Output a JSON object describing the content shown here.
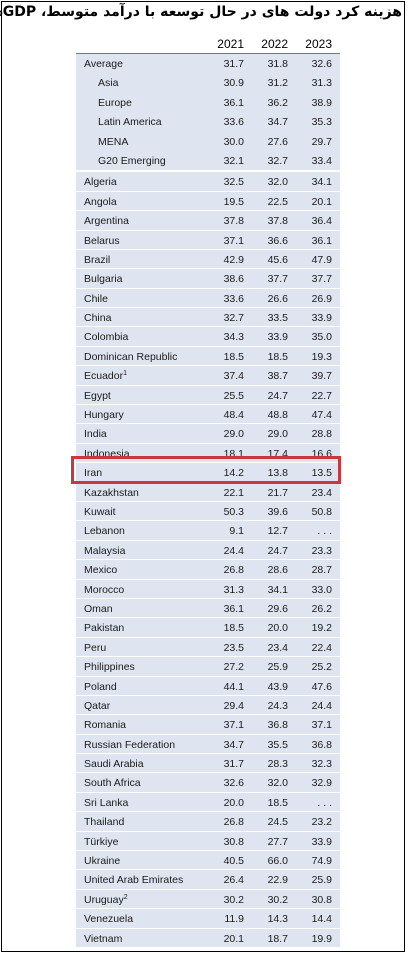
{
  "title": "هزینه کرد دولت های در حال توسعه با درآمد متوسط، GDP%",
  "columns": [
    "2021",
    "2022",
    "2023"
  ],
  "group": [
    {
      "name": "Average",
      "indent": false,
      "v": [
        "31.7",
        "31.8",
        "32.6"
      ]
    },
    {
      "name": "Asia",
      "indent": true,
      "v": [
        "30.9",
        "31.2",
        "31.3"
      ]
    },
    {
      "name": "Europe",
      "indent": true,
      "v": [
        "36.1",
        "36.2",
        "38.9"
      ]
    },
    {
      "name": "Latin America",
      "indent": true,
      "v": [
        "33.6",
        "34.7",
        "35.3"
      ]
    },
    {
      "name": "MENA",
      "indent": true,
      "v": [
        "30.0",
        "27.6",
        "29.7"
      ]
    },
    {
      "name": "G20 Emerging",
      "indent": true,
      "v": [
        "32.1",
        "32.7",
        "33.4"
      ]
    }
  ],
  "rows": [
    {
      "name": "Algeria",
      "v": [
        "32.5",
        "32.0",
        "34.1"
      ]
    },
    {
      "name": "Angola",
      "v": [
        "19.5",
        "22.5",
        "20.1"
      ]
    },
    {
      "name": "Argentina",
      "v": [
        "37.8",
        "37.8",
        "36.4"
      ]
    },
    {
      "name": "Belarus",
      "v": [
        "37.1",
        "36.6",
        "36.1"
      ]
    },
    {
      "name": "Brazil",
      "v": [
        "42.9",
        "45.6",
        "47.9"
      ]
    },
    {
      "name": "Bulgaria",
      "v": [
        "38.6",
        "37.7",
        "37.7"
      ]
    },
    {
      "name": "Chile",
      "v": [
        "33.6",
        "26.6",
        "26.9"
      ]
    },
    {
      "name": "China",
      "v": [
        "32.7",
        "33.5",
        "33.9"
      ]
    },
    {
      "name": "Colombia",
      "v": [
        "34.3",
        "33.9",
        "35.0"
      ]
    },
    {
      "name": "Dominican Republic",
      "v": [
        "18.5",
        "18.5",
        "19.3"
      ]
    },
    {
      "name": "Ecuador",
      "sup": "1",
      "v": [
        "37.4",
        "38.7",
        "39.7"
      ]
    },
    {
      "name": "Egypt",
      "v": [
        "25.5",
        "24.7",
        "22.7"
      ]
    },
    {
      "name": "Hungary",
      "v": [
        "48.4",
        "48.8",
        "47.4"
      ]
    },
    {
      "name": "India",
      "v": [
        "29.0",
        "29.0",
        "28.8"
      ]
    },
    {
      "name": "Indonesia",
      "v": [
        "18.1",
        "17.4",
        "16.6"
      ]
    },
    {
      "name": "Iran",
      "v": [
        "14.2",
        "13.8",
        "13.5"
      ]
    },
    {
      "name": "Kazakhstan",
      "v": [
        "22.1",
        "21.7",
        "23.4"
      ]
    },
    {
      "name": "Kuwait",
      "v": [
        "50.3",
        "39.6",
        "50.8"
      ]
    },
    {
      "name": "Lebanon",
      "v": [
        "9.1",
        "12.7",
        ". . ."
      ]
    },
    {
      "name": "Malaysia",
      "v": [
        "24.4",
        "24.7",
        "23.3"
      ]
    },
    {
      "name": "Mexico",
      "v": [
        "26.8",
        "28.6",
        "28.7"
      ]
    },
    {
      "name": "Morocco",
      "v": [
        "31.3",
        "34.1",
        "33.0"
      ]
    },
    {
      "name": "Oman",
      "v": [
        "36.1",
        "29.6",
        "26.2"
      ]
    },
    {
      "name": "Pakistan",
      "v": [
        "18.5",
        "20.0",
        "19.2"
      ]
    },
    {
      "name": "Peru",
      "v": [
        "23.5",
        "23.4",
        "22.4"
      ]
    },
    {
      "name": "Philippines",
      "v": [
        "27.2",
        "25.9",
        "25.2"
      ]
    },
    {
      "name": "Poland",
      "v": [
        "44.1",
        "43.9",
        "47.6"
      ]
    },
    {
      "name": "Qatar",
      "v": [
        "29.4",
        "24.3",
        "24.4"
      ]
    },
    {
      "name": "Romania",
      "v": [
        "37.1",
        "36.8",
        "37.1"
      ]
    },
    {
      "name": "Russian Federation",
      "v": [
        "34.7",
        "35.5",
        "36.8"
      ]
    },
    {
      "name": "Saudi Arabia",
      "v": [
        "31.7",
        "28.3",
        "32.3"
      ]
    },
    {
      "name": "South Africa",
      "v": [
        "32.6",
        "32.0",
        "32.9"
      ]
    },
    {
      "name": "Sri Lanka",
      "v": [
        "20.0",
        "18.5",
        ". . ."
      ]
    },
    {
      "name": "Thailand",
      "v": [
        "26.8",
        "24.5",
        "23.2"
      ]
    },
    {
      "name": "Türkiye",
      "v": [
        "30.8",
        "27.7",
        "33.9"
      ]
    },
    {
      "name": "Ukraine",
      "v": [
        "40.5",
        "66.0",
        "74.9"
      ]
    },
    {
      "name": "United Arab Emirates",
      "v": [
        "26.4",
        "22.9",
        "25.9"
      ]
    },
    {
      "name": "Uruguay",
      "sup": "2",
      "v": [
        "30.2",
        "30.2",
        "30.8"
      ]
    },
    {
      "name": "Venezuela",
      "v": [
        "11.9",
        "14.3",
        "14.4"
      ]
    },
    {
      "name": "Vietnam",
      "v": [
        "20.1",
        "18.7",
        "19.9"
      ]
    }
  ],
  "highlight_color": "#c8383e",
  "row_color": "#dfe5f0"
}
